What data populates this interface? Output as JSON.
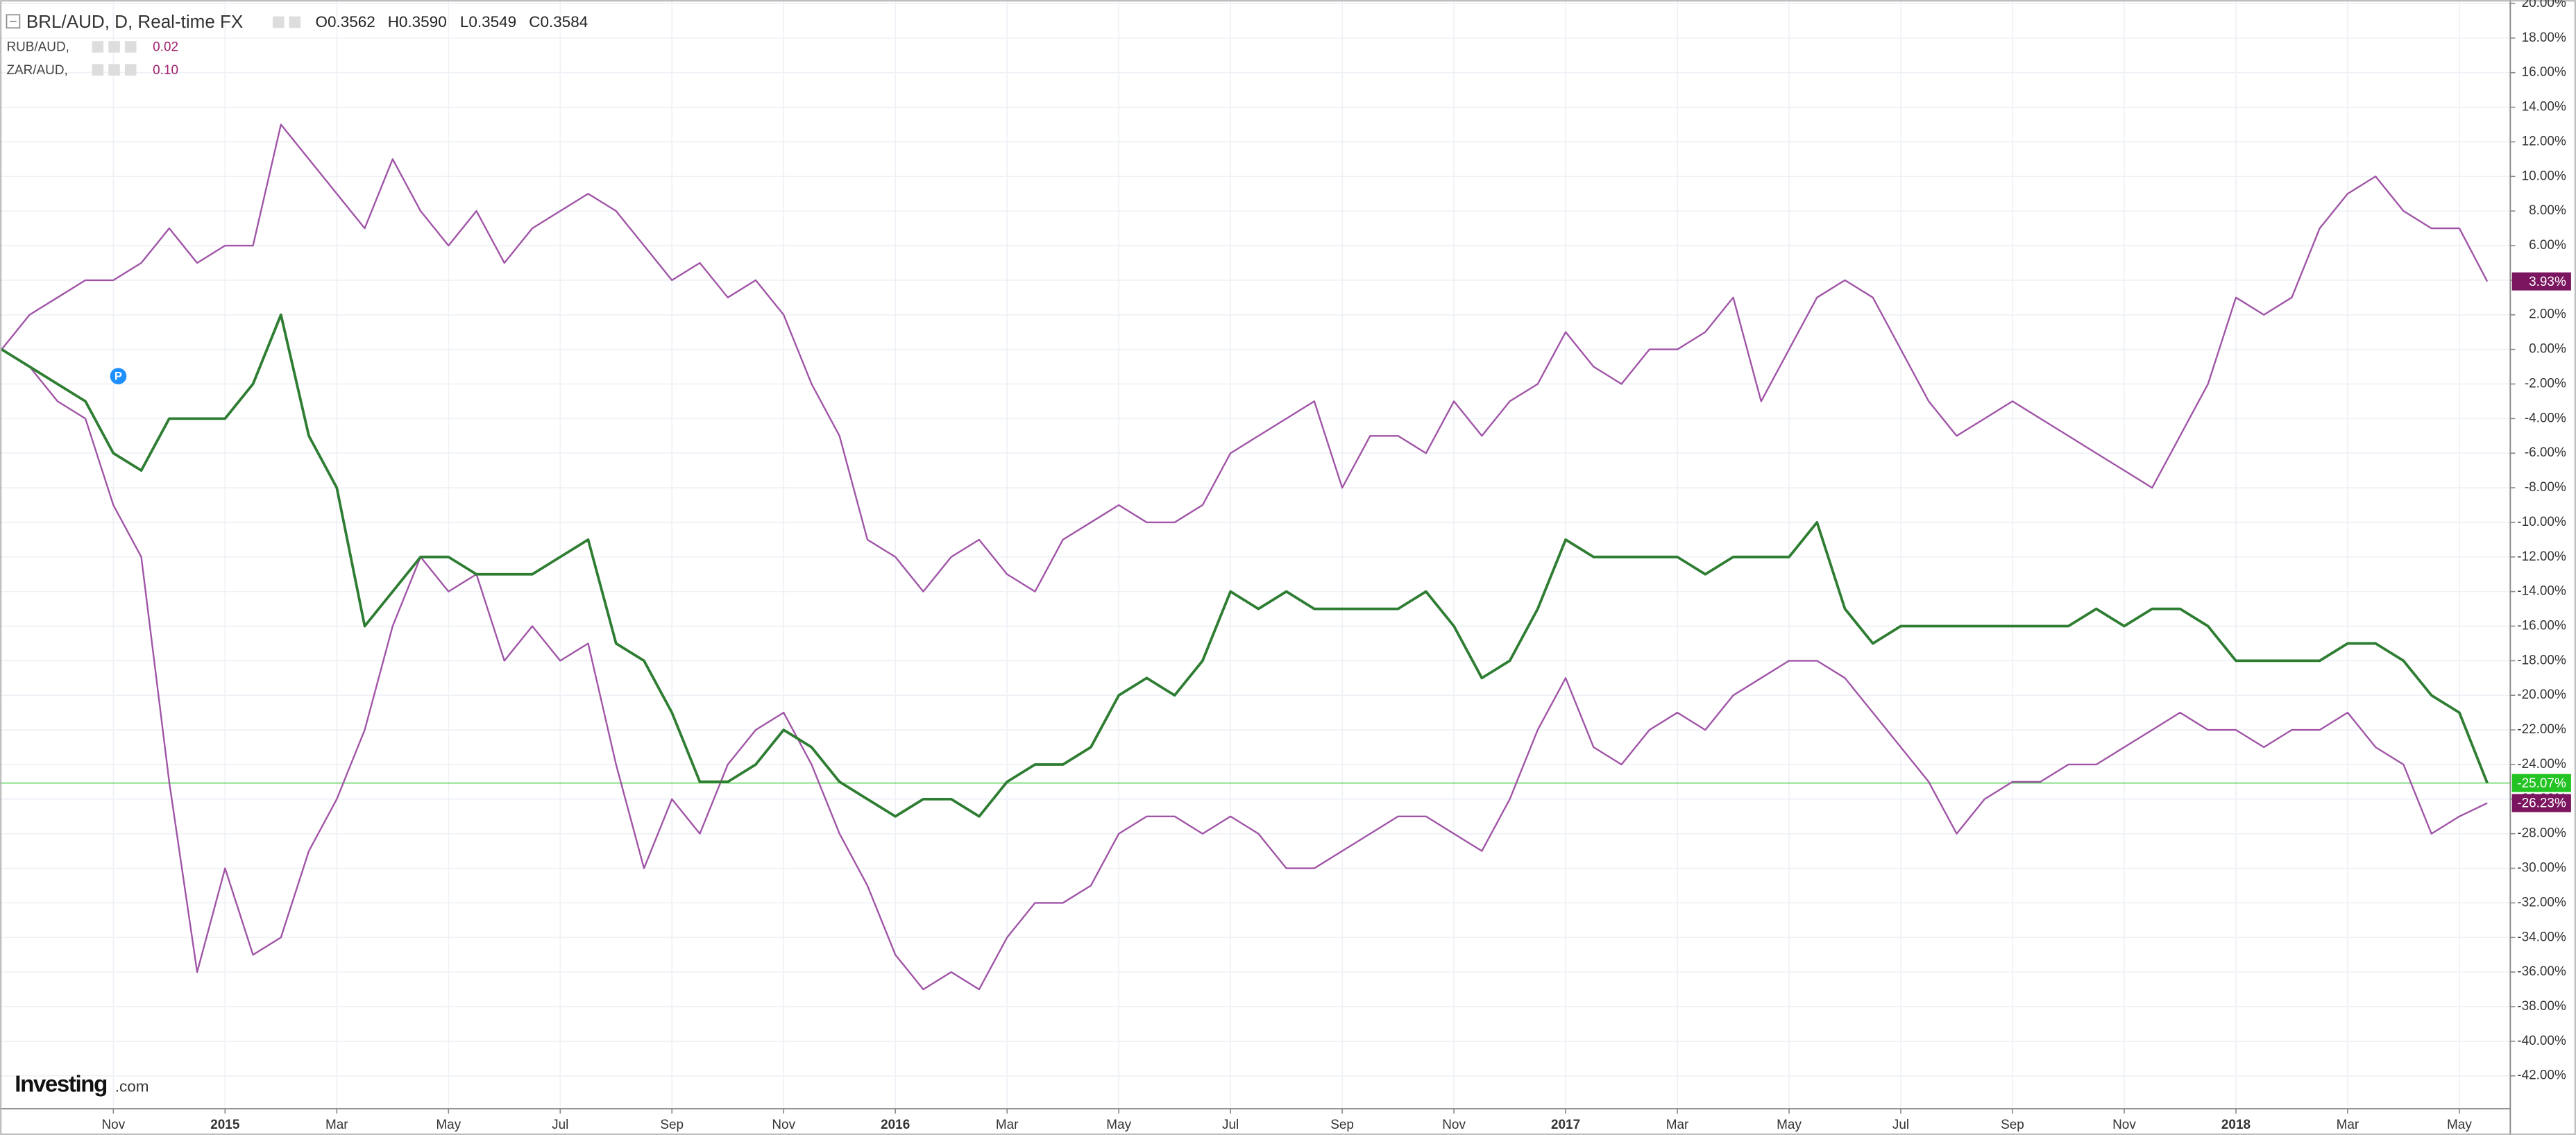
{
  "chart_data": {
    "type": "line",
    "header": {
      "ohlc": [
        "O0.3562",
        "H0.3590",
        "L0.3549",
        "C0.3584"
      ],
      "logo": [
        "Investing",
        ".com"
      ]
    },
    "categories": [
      null,
      null,
      null,
      null,
      "Nov",
      null,
      null,
      null,
      "2015",
      null,
      null,
      null,
      "Mar",
      null,
      null,
      null,
      "May",
      null,
      null,
      null,
      "Jul",
      null,
      null,
      null,
      "Sep",
      null,
      null,
      null,
      "Nov",
      null,
      null,
      null,
      "2016",
      null,
      null,
      null,
      "Mar",
      null,
      null,
      null,
      "May",
      null,
      null,
      null,
      "Jul",
      null,
      null,
      null,
      "Sep",
      null,
      null,
      null,
      "Nov",
      null,
      null,
      null,
      "2017",
      null,
      null,
      null,
      "Mar",
      null,
      null,
      null,
      "May",
      null,
      null,
      null,
      "Jul",
      null,
      null,
      null,
      "Sep",
      null,
      null,
      null,
      "Nov",
      null,
      null,
      null,
      "2018",
      null,
      null,
      null,
      "Mar",
      null,
      null,
      null,
      "May",
      null
    ],
    "series": [
      {
        "name": "BRL/AUD, D, Real-time FX",
        "color": "#2e7d32",
        "end_label": {
          "value": -25.07,
          "label": "-25.07%"
        },
        "end_color": "#22c322",
        "values": [
          0,
          -1,
          -2,
          -3,
          -6,
          -7,
          -4,
          -4,
          -4,
          -2,
          2,
          -5,
          -8,
          -16,
          -14,
          -12,
          -12,
          -13,
          -13,
          -13,
          -12,
          -11,
          -17,
          -18,
          -21,
          -25,
          -25,
          -24,
          -22,
          -23,
          -25,
          -26,
          -27,
          -26,
          -26,
          -27,
          -25,
          -24,
          -24,
          -23,
          -20,
          -19,
          -20,
          -18,
          -14,
          -15,
          -14,
          -15,
          -15,
          -15,
          -15,
          -14,
          -16,
          -19,
          -18,
          -15,
          -11,
          -12,
          -12,
          -12,
          -12,
          -13,
          -12,
          -12,
          -12,
          -10,
          -15,
          -17,
          -16,
          -16,
          -16,
          -16,
          -16,
          -16,
          -16,
          -15,
          -16,
          -15,
          -15,
          -16,
          -18,
          -18,
          -18,
          -18,
          -17,
          -17,
          -18,
          -20,
          -21,
          -25.07
        ]
      },
      {
        "name": "RUB/AUD,",
        "legend_value": "0.02",
        "color": "#a054a6",
        "end_label": {
          "value": -26.23,
          "label": "-26.23%"
        },
        "end_color": "#7b1560",
        "values": [
          0,
          -1,
          -3,
          -4,
          -9,
          -12,
          -25,
          -36,
          -30,
          -35,
          -34,
          -29,
          -26,
          -22,
          -16,
          -12,
          -14,
          -13,
          -18,
          -16,
          -18,
          -17,
          -24,
          -30,
          -26,
          -28,
          -24,
          -22,
          -21,
          -24,
          -28,
          -31,
          -35,
          -37,
          -36,
          -37,
          -34,
          -32,
          -32,
          -31,
          -28,
          -27,
          -27,
          -28,
          -27,
          -28,
          -30,
          -30,
          -29,
          -28,
          -27,
          -27,
          -28,
          -29,
          -26,
          -22,
          -19,
          -23,
          -24,
          -22,
          -21,
          -22,
          -20,
          -19,
          -18,
          -18,
          -19,
          -21,
          -23,
          -25,
          -28,
          -26,
          -25,
          -25,
          -24,
          -24,
          -23,
          -22,
          -21,
          -22,
          -22,
          -23,
          -22,
          -22,
          -21,
          -23,
          -24,
          -28,
          -27,
          -26.23
        ]
      },
      {
        "name": "ZAR/AUD,",
        "legend_value": "0.10",
        "color": "#a054a6",
        "end_label": {
          "value": 3.93,
          "label": "3.93%"
        },
        "end_color": "#7b1560",
        "values": [
          0,
          2,
          3,
          4,
          4,
          5,
          7,
          5,
          6,
          6,
          13,
          11,
          9,
          7,
          11,
          8,
          6,
          8,
          5,
          7,
          8,
          9,
          8,
          6,
          4,
          5,
          3,
          4,
          2,
          -2,
          -5,
          -11,
          -12,
          -14,
          -12,
          -11,
          -13,
          -14,
          -11,
          -10,
          -9,
          -10,
          -10,
          -9,
          -6,
          -5,
          -4,
          -3,
          -8,
          -5,
          -5,
          -6,
          -3,
          -5,
          -3,
          -2,
          1,
          -1,
          -2,
          0,
          0,
          1,
          3,
          -3,
          0,
          3,
          4,
          3,
          0,
          -3,
          -5,
          -4,
          -3,
          -4,
          -5,
          -6,
          -7,
          -8,
          -5,
          -2,
          3,
          2,
          3,
          7,
          9,
          10,
          8,
          7,
          7,
          3.93
        ]
      }
    ],
    "ylim": [
      -43.9,
      20.2
    ],
    "yticks": [
      {
        "value": 20,
        "label": "20.00%"
      },
      {
        "value": 18,
        "label": "18.00%"
      },
      {
        "value": 16,
        "label": "16.00%"
      },
      {
        "value": 14,
        "label": "14.00%"
      },
      {
        "value": 12,
        "label": "12.00%"
      },
      {
        "value": 10,
        "label": "10.00%"
      },
      {
        "value": 8,
        "label": "8.00%"
      },
      {
        "value": 6,
        "label": "6.00%"
      },
      {
        "value": 4,
        "label": "4.00%"
      },
      {
        "value": 2,
        "label": "2.00%"
      },
      {
        "value": 0,
        "label": "0.00%"
      },
      {
        "value": -2,
        "label": "-2.00%"
      },
      {
        "value": -4,
        "label": "-4.00%"
      },
      {
        "value": -6,
        "label": "-6.00%"
      },
      {
        "value": -8,
        "label": "-8.00%"
      },
      {
        "value": -10,
        "label": "-10.00%"
      },
      {
        "value": -12,
        "label": "-12.00%"
      },
      {
        "value": -14,
        "label": "-14.00%"
      },
      {
        "value": -16,
        "label": "-16.00%"
      },
      {
        "value": -18,
        "label": "-18.00%"
      },
      {
        "value": -20,
        "label": "-20.00%"
      },
      {
        "value": -22,
        "label": "-22.00%"
      },
      {
        "value": -24,
        "label": "-24.00%"
      },
      {
        "value": -26,
        "label": "-26.00%"
      },
      {
        "value": -28,
        "label": "-28.00%"
      },
      {
        "value": -30,
        "label": "-30.00%"
      },
      {
        "value": -32,
        "label": "-32.00%"
      },
      {
        "value": -34,
        "label": "-34.00%"
      },
      {
        "value": -36,
        "label": "-36.00%"
      },
      {
        "value": -38,
        "label": "-38.00%"
      },
      {
        "value": -40,
        "label": "-40.00%"
      },
      {
        "value": -42,
        "label": "-42.00%"
      }
    ],
    "grid": true
  }
}
